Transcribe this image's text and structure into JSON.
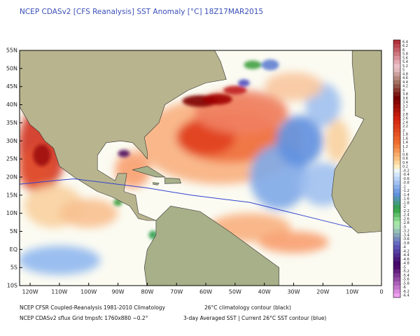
{
  "header": {
    "title": "NCEP CDASv2 [CFS Reanalysis] SST Anomaly [°C] 18Z17MAR2015"
  },
  "map": {
    "lat_labels": [
      "55N",
      "50N",
      "45N",
      "40N",
      "35N",
      "30N",
      "25N",
      "20N",
      "15N",
      "10N",
      "5N",
      "EQ",
      "5S",
      "10S"
    ],
    "lon_labels": [
      "120W",
      "110W",
      "100W",
      "90W",
      "80W",
      "70W",
      "60W",
      "50W",
      "40W",
      "30W",
      "20W",
      "10W",
      "0"
    ]
  },
  "colorbar": {
    "levels": [
      6.4,
      6.2,
      6,
      5.8,
      5.6,
      5.4,
      5.2,
      5,
      4.8,
      4.6,
      4.4,
      4.2,
      4,
      3.8,
      3.6,
      3.4,
      3.2,
      3,
      2.8,
      2.6,
      2.4,
      2.2,
      2,
      1.8,
      1.6,
      1.4,
      1.2,
      1,
      0.8,
      0.6,
      0.4,
      0.2,
      -0.2,
      -0.4,
      -0.6,
      -0.8,
      -1,
      -1.2,
      -1.4,
      -1.6,
      -1.8,
      -2,
      -2.2,
      -2.4,
      -2.6,
      -2.8,
      -3,
      -3.2,
      -3.4,
      -3.6,
      -3.8,
      -4,
      -4.2,
      -4.4,
      -4.6,
      -4.8,
      -5,
      -5.2,
      -5.4,
      -5.6,
      -5.8,
      -6,
      -6.2,
      -6.4
    ]
  },
  "footer": {
    "lines": [
      [
        "NCEP CFSR Coupled-Reanalysis 1981-2010 Climatology",
        "26°C climatology contour (black)"
      ],
      [
        "NCEP CDASv2 sflux Grid tmpsfc 1760x880 ~0.2°",
        "3-day Averaged SST | Current 26°C SST contour (blue)"
      ]
    ]
  }
}
